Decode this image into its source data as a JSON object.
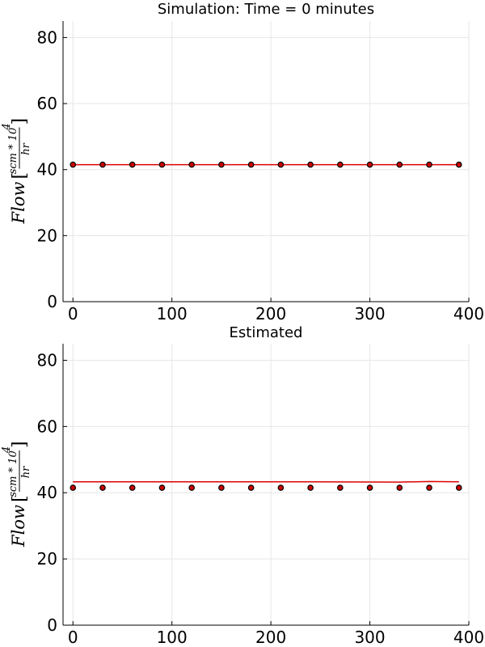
{
  "chart_data": [
    {
      "type": "scatter",
      "title": "Simulation: Time = 0 minutes",
      "ylabel": {
        "main": "Flow",
        "open": "[",
        "close": "]",
        "numerator": "scm * 10",
        "exponent": "4",
        "denominator": "hr"
      },
      "xlim": [
        -10,
        400
      ],
      "ylim": [
        0,
        85
      ],
      "xticks": [
        0,
        100,
        200,
        300,
        400
      ],
      "yticks": [
        0,
        20,
        40,
        60,
        80
      ],
      "grid": true,
      "series": [
        {
          "type": "scatter",
          "color": "#cc0000",
          "edge": "#000000",
          "x": [
            0,
            30,
            60,
            90,
            120,
            150,
            180,
            210,
            240,
            270,
            300,
            330,
            360,
            390
          ],
          "y": [
            41.5,
            41.5,
            41.5,
            41.5,
            41.5,
            41.5,
            41.5,
            41.5,
            41.5,
            41.5,
            41.5,
            41.5,
            41.5,
            41.5
          ]
        },
        {
          "type": "line",
          "color": "#dd0000",
          "x": [
            0,
            390
          ],
          "y": [
            41.5,
            41.5
          ]
        }
      ]
    },
    {
      "type": "scatter",
      "title": "Estimated",
      "ylabel": {
        "main": "Flow",
        "open": "[",
        "close": "]",
        "numerator": "scm * 10",
        "exponent": "4",
        "denominator": "hr"
      },
      "xlim": [
        -10,
        400
      ],
      "ylim": [
        0,
        85
      ],
      "xticks": [
        0,
        100,
        200,
        300,
        400
      ],
      "yticks": [
        0,
        20,
        40,
        60,
        80
      ],
      "grid": true,
      "series": [
        {
          "type": "scatter",
          "color": "#cc0000",
          "edge": "#000000",
          "x": [
            0,
            30,
            60,
            90,
            120,
            150,
            180,
            210,
            240,
            270,
            300,
            330,
            360,
            390
          ],
          "y": [
            41.5,
            41.5,
            41.5,
            41.5,
            41.5,
            41.5,
            41.5,
            41.5,
            41.5,
            41.5,
            41.5,
            41.5,
            41.5,
            41.5
          ]
        },
        {
          "type": "line",
          "color": "#dd0000",
          "x": [
            0,
            120,
            240,
            330,
            360,
            390
          ],
          "y": [
            43.3,
            43.3,
            43.3,
            43.2,
            43.4,
            43.3
          ]
        }
      ]
    }
  ]
}
